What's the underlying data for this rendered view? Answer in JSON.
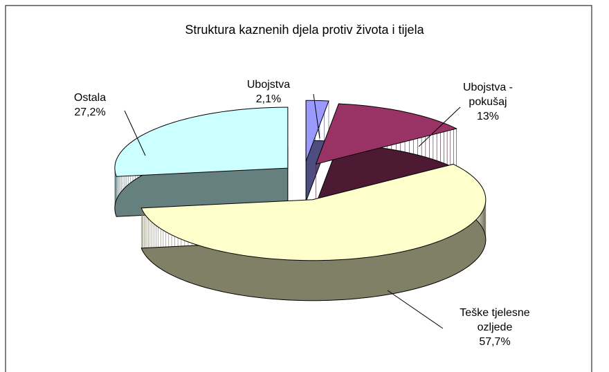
{
  "chart_data": {
    "type": "pie",
    "title": "Struktura kaznenih djela protiv života i tijela",
    "categories": [
      "Ubojstva",
      "Ubojstva - pokušaj",
      "Teške tjelesne ozljede",
      "Ostala"
    ],
    "values": [
      2.1,
      13,
      57.7,
      27.2
    ],
    "value_labels": [
      "2,1%",
      "13%",
      "57,7%",
      "27,2%"
    ],
    "colors": [
      "#9999ff",
      "#993366",
      "#ffffcc",
      "#ccffff"
    ]
  }
}
